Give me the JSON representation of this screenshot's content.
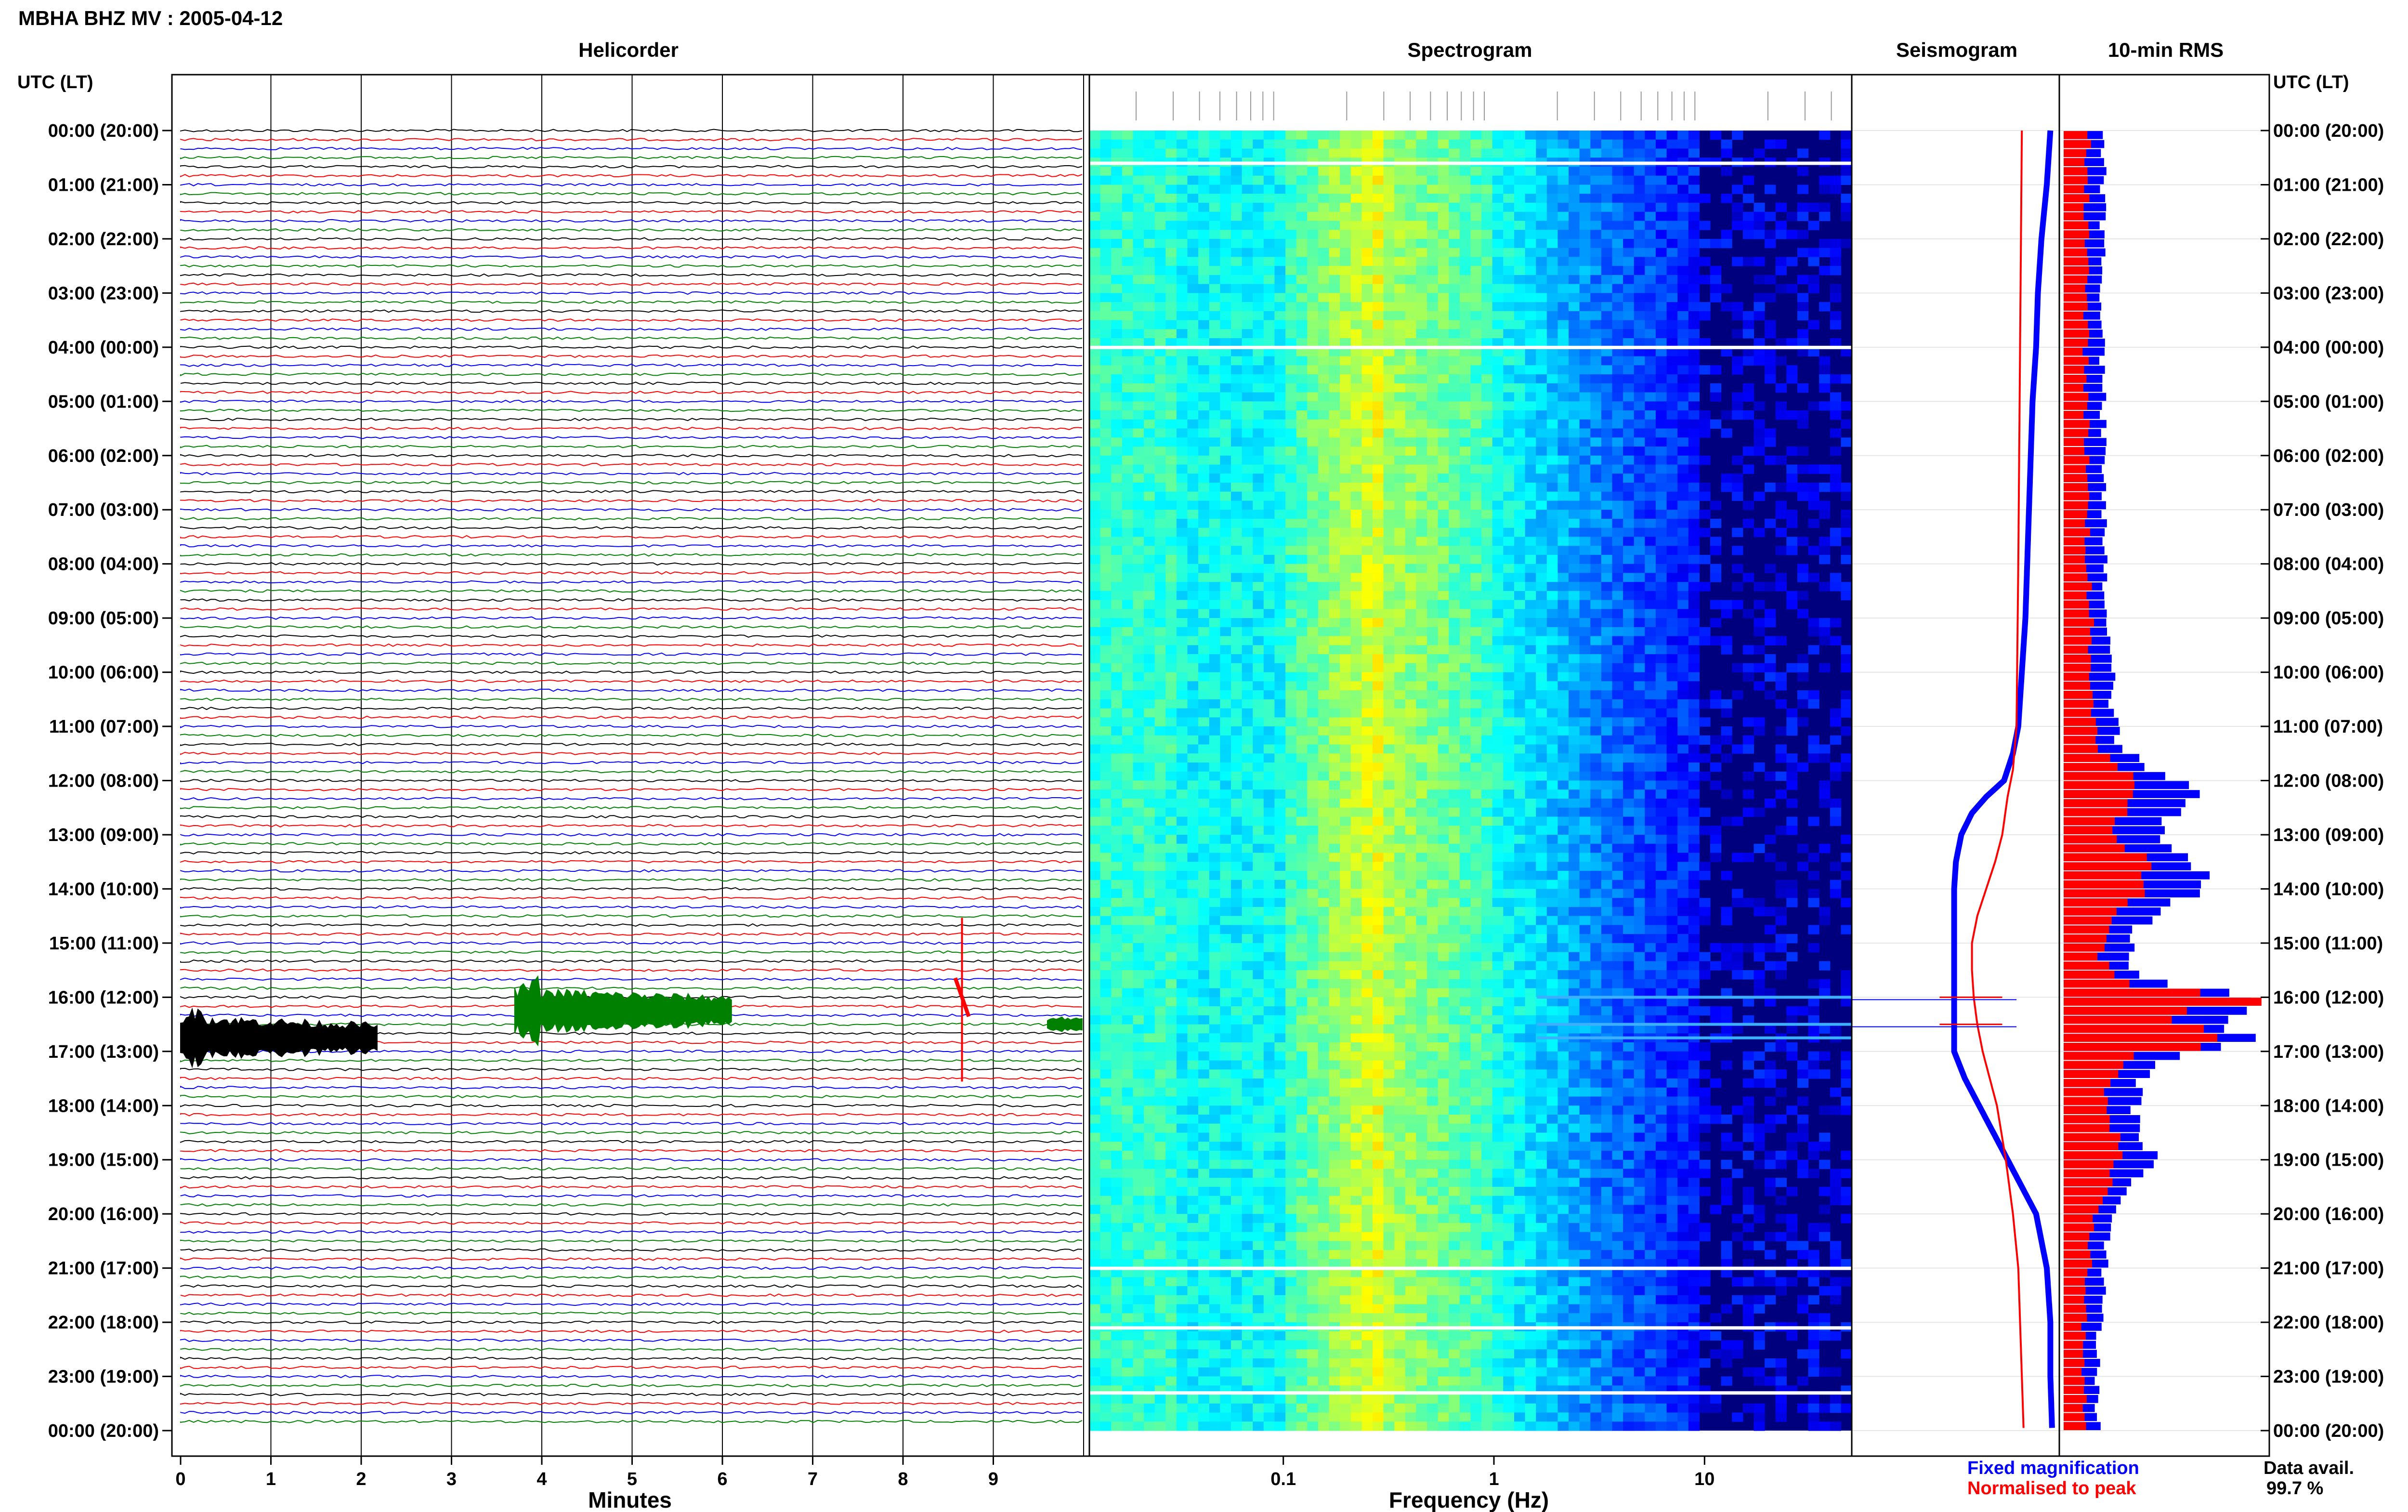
{
  "header": {
    "title": "MBHA BHZ MV : 2005-04-12"
  },
  "panels": {
    "helicorder": "Helicorder",
    "spectrogram": "Spectrogram",
    "seismogram": "Seismogram",
    "rms": "10-min RMS"
  },
  "axes": {
    "left_header": "UTC (LT)",
    "right_header": "UTC (LT)",
    "helicorder_xlabel": "Minutes",
    "spectrogram_xlabel": "Frequency (Hz)"
  },
  "legend": {
    "fixed": "Fixed magnification",
    "normalised": "Normalised to peak",
    "fixed_color": "#0000ff",
    "normalised_color": "#ff0000"
  },
  "availability": {
    "label": "Data avail.",
    "value": "99.7 %"
  },
  "colors": {
    "trace_cycle": [
      "#000000",
      "#ff0000",
      "#0000ff",
      "#008000"
    ],
    "spectrogram_bg": "#00007f",
    "grid": "#000000"
  },
  "chart_data": [
    {
      "type": "line",
      "name": "helicorder",
      "xlabel": "Minutes",
      "x_ticks": [
        "0",
        "1",
        "2",
        "3",
        "4",
        "5",
        "6",
        "7",
        "8",
        "9"
      ],
      "xlim": [
        0,
        10
      ],
      "y_ticks": [
        "00:00 (20:00)",
        "01:00 (21:00)",
        "02:00 (22:00)",
        "03:00 (23:00)",
        "04:00 (00:00)",
        "05:00 (01:00)",
        "06:00 (02:00)",
        "07:00 (03:00)",
        "08:00 (04:00)",
        "09:00 (05:00)",
        "10:00 (06:00)",
        "11:00 (07:00)",
        "12:00 (08:00)",
        "13:00 (09:00)",
        "14:00 (10:00)",
        "15:00 (11:00)",
        "16:00 (12:00)",
        "17:00 (13:00)",
        "18:00 (14:00)",
        "19:00 (15:00)",
        "20:00 (16:00)",
        "21:00 (17:00)",
        "22:00 (18:00)",
        "23:00 (19:00)",
        "00:00 (20:00)"
      ],
      "ylim_hours": [
        0,
        24
      ],
      "lines_per_hour": 6,
      "events": [
        {
          "hour": 16.75,
          "start_min": 0.0,
          "end_min": 2.2,
          "color": "#000000",
          "amplitude": "large"
        },
        {
          "hour": 16.25,
          "start_min": 3.7,
          "end_min": 6.1,
          "color": "#008000",
          "amplitude": "large"
        },
        {
          "hour": 16.0,
          "start_min": 8.6,
          "end_min": 8.7,
          "color": "#ff0000",
          "amplitude": "spike"
        },
        {
          "hour": 16.5,
          "start_min": 9.6,
          "end_min": 10.0,
          "color": "#008000",
          "amplitude": "medium"
        }
      ]
    },
    {
      "type": "heatmap",
      "name": "spectrogram",
      "xlabel": "Frequency (Hz)",
      "x_ticks": [
        "0.1",
        "1",
        "10"
      ],
      "x_tick_values": [
        0.1,
        1,
        10
      ],
      "xscale": "log",
      "xlim": [
        0.012,
        50
      ],
      "colormap": "jet",
      "gap_hours": [
        0.6,
        4.0,
        21.0,
        22.1,
        23.3
      ],
      "event_hours": [
        16.0,
        16.5,
        16.75
      ]
    },
    {
      "type": "line",
      "name": "seismogram",
      "series": [
        {
          "name": "Fixed magnification",
          "color": "#0000ff",
          "hours": [
            0,
            1,
            2,
            3,
            4,
            5,
            6,
            7,
            8,
            9,
            10,
            11,
            11.5,
            12,
            12.3,
            12.6,
            13,
            13.5,
            14,
            15,
            16,
            16.5,
            17,
            17.5,
            18,
            18.5,
            19,
            19.5,
            20,
            21,
            22,
            23,
            24
          ],
          "values": [
            0.52,
            0.5,
            0.47,
            0.45,
            0.44,
            0.42,
            0.41,
            0.4,
            0.39,
            0.38,
            0.36,
            0.34,
            0.31,
            0.26,
            0.16,
            0.08,
            0.02,
            -0.01,
            -0.02,
            -0.02,
            -0.02,
            -0.02,
            -0.02,
            0.04,
            0.12,
            0.2,
            0.28,
            0.36,
            0.44,
            0.5,
            0.52,
            0.52,
            0.53
          ]
        },
        {
          "name": "Normalised to peak",
          "color": "#ff0000",
          "hours": [
            0,
            4,
            8,
            11,
            11.8,
            12.3,
            13,
            13.5,
            14,
            14.5,
            15,
            15.5,
            16,
            16.5,
            17,
            17.5,
            18,
            19,
            20,
            21,
            22,
            23,
            24
          ],
          "values": [
            0.36,
            0.35,
            0.34,
            0.33,
            0.31,
            0.28,
            0.25,
            0.21,
            0.16,
            0.11,
            0.08,
            0.08,
            0.09,
            0.11,
            0.14,
            0.18,
            0.22,
            0.27,
            0.31,
            0.34,
            0.35,
            0.36,
            0.37
          ]
        }
      ],
      "spikes_hours": [
        16.0,
        16.5
      ]
    },
    {
      "type": "bar",
      "name": "rms",
      "series": [
        {
          "name": "Fixed magnification",
          "color": "#0000ff"
        },
        {
          "name": "Normalised to peak",
          "color": "#ff0000"
        }
      ],
      "profile_hours": [
        0,
        4,
        8,
        11,
        11.5,
        12,
        12.3,
        12.7,
        13,
        13.5,
        14,
        14.3,
        14.8,
        15.3,
        15.8,
        16.0,
        16.2,
        16.5,
        16.8,
        17.0,
        17.5,
        18,
        18.5,
        19,
        19.5,
        20,
        21,
        22,
        23,
        24
      ],
      "profile_fixed": [
        0.2,
        0.19,
        0.2,
        0.25,
        0.3,
        0.55,
        0.65,
        0.5,
        0.45,
        0.65,
        0.75,
        0.55,
        0.35,
        0.3,
        0.5,
        1.0,
        0.9,
        0.8,
        0.95,
        0.6,
        0.4,
        0.35,
        0.4,
        0.45,
        0.35,
        0.25,
        0.2,
        0.18,
        0.17,
        0.17
      ],
      "profile_norm": [
        0.12,
        0.11,
        0.12,
        0.15,
        0.2,
        0.35,
        0.3,
        0.3,
        0.25,
        0.4,
        0.45,
        0.3,
        0.2,
        0.18,
        0.3,
        1.0,
        0.7,
        0.5,
        0.95,
        0.35,
        0.25,
        0.2,
        0.25,
        0.28,
        0.22,
        0.16,
        0.12,
        0.1,
        0.1,
        0.1
      ]
    }
  ]
}
